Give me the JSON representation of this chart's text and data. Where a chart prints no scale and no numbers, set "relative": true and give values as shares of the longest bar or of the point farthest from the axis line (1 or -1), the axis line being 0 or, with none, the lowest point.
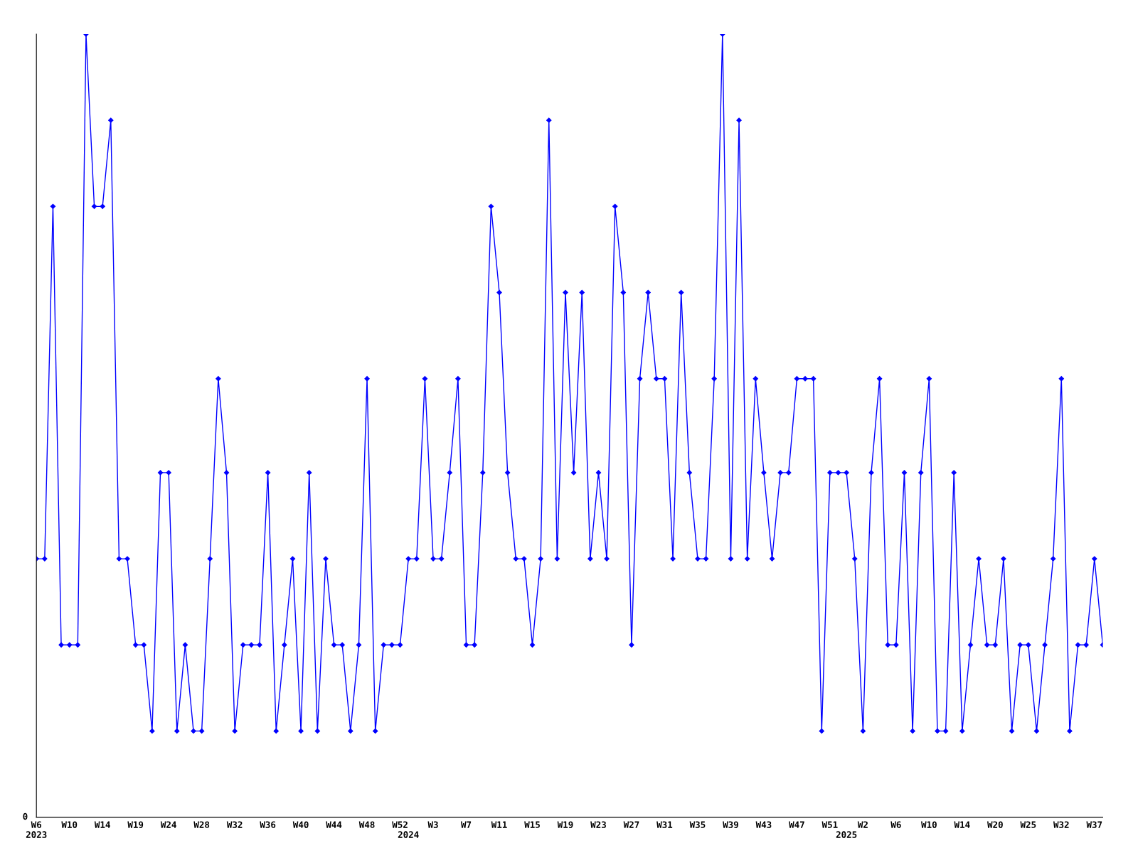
{
  "chart_data": {
    "type": "line",
    "relative": true,
    "marker": "diamond",
    "line_style": "solid",
    "grid": false,
    "legend": false,
    "annotations": [
      "0"
    ],
    "categories": [
      "W6\n2023",
      null,
      null,
      null,
      "W10",
      null,
      null,
      null,
      "W14",
      null,
      null,
      null,
      "W19",
      null,
      null,
      null,
      "W24",
      null,
      null,
      null,
      "W28",
      null,
      null,
      null,
      "W32",
      null,
      null,
      null,
      "W36",
      null,
      null,
      null,
      "W40",
      null,
      null,
      null,
      "W44",
      null,
      null,
      null,
      "W48",
      null,
      null,
      null,
      "W52",
      "\n2024",
      null,
      null,
      "W3",
      null,
      null,
      null,
      "W7",
      null,
      null,
      null,
      "W11",
      null,
      null,
      null,
      "W15",
      null,
      null,
      null,
      "W19",
      null,
      null,
      null,
      "W23",
      null,
      null,
      null,
      "W27",
      null,
      null,
      null,
      "W31",
      null,
      null,
      null,
      "W35",
      null,
      null,
      null,
      "W39",
      null,
      null,
      null,
      "W43",
      null,
      null,
      null,
      "W47",
      null,
      null,
      null,
      "W51",
      null,
      "\n2025",
      null,
      "W2",
      null,
      null,
      null,
      "W6",
      null,
      null,
      null,
      "W10",
      null,
      null,
      null,
      "W14",
      null,
      null,
      null,
      "W20",
      null,
      null,
      null,
      "W25",
      null,
      null,
      null,
      "W32",
      null,
      null,
      null,
      "W37",
      null
    ],
    "series": [
      {
        "color": "#0000ff",
        "values": [
          0.33,
          0.33,
          0.78,
          0.22,
          0.22,
          0.22,
          1,
          0.78,
          0.78,
          0.89,
          0.33,
          0.33,
          0.22,
          0.22,
          0.11,
          0.44,
          0.44,
          0.11,
          0.22,
          0.11,
          0.11,
          0.33,
          0.56,
          0.44,
          0.11,
          0.22,
          0.22,
          0.22,
          0.44,
          0.11,
          0.22,
          0.33,
          0.11,
          0.44,
          0.11,
          0.33,
          0.22,
          0.22,
          0.11,
          0.22,
          0.56,
          0.11,
          0.22,
          0.22,
          0.22,
          0.33,
          0.33,
          0.56,
          0.33,
          0.33,
          0.44,
          0.56,
          0.22,
          0.22,
          0.44,
          0.78,
          0.67,
          0.44,
          0.33,
          0.33,
          0.22,
          0.33,
          0.89,
          0.33,
          0.67,
          0.44,
          0.67,
          0.33,
          0.44,
          0.33,
          0.78,
          0.67,
          0.22,
          0.56,
          0.67,
          0.56,
          0.56,
          0.33,
          0.67,
          0.44,
          0.33,
          0.33,
          0.56,
          1,
          0.33,
          0.89,
          0.33,
          0.56,
          0.44,
          0.33,
          0.44,
          0.44,
          0.56,
          0.56,
          0.56,
          0.11,
          0.44,
          0.44,
          0.44,
          0.33,
          0.11,
          0.44,
          0.56,
          0.22,
          0.22,
          0.44,
          0.11,
          0.44,
          0.56,
          0.11,
          0.11,
          0.44,
          0.11,
          0.22,
          0.33,
          0.22,
          0.22,
          0.33,
          0.11,
          0.22,
          0.22,
          0.11,
          0.22,
          0.33,
          0.56,
          0.11,
          0.22,
          0.22,
          0.33,
          0.22
        ]
      }
    ]
  }
}
